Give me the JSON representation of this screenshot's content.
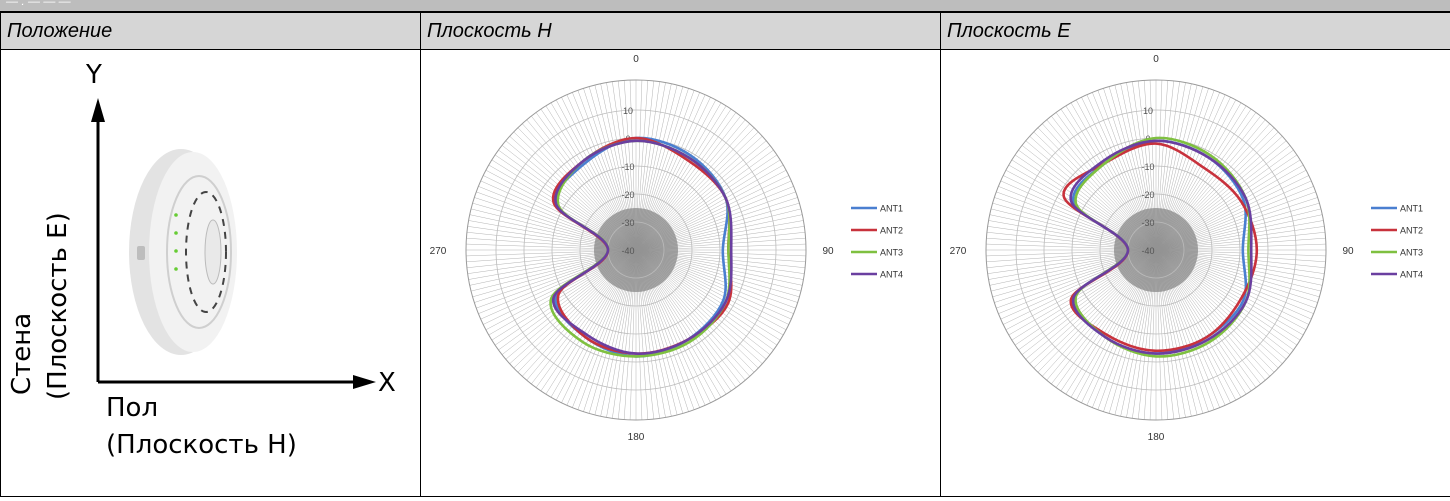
{
  "topbar": {
    "text": "— . —  —  —"
  },
  "headers": {
    "position": "Положение",
    "h_plane": "Плоскость H",
    "e_plane": "Плоскость E"
  },
  "position_panel": {
    "y_label": "Y",
    "x_label": "X",
    "wall_label": "Стена",
    "wall_sub": "(Плоскость E)",
    "floor_label": "Пол",
    "floor_sub": "(Плоскость H)"
  },
  "colors": {
    "ANT1": "#4a7fd0",
    "ANT2": "#c8323c",
    "ANT3": "#7fc040",
    "ANT4": "#6a3fa0",
    "grid": "#cfcfcf",
    "spokes": "#9a9a9a",
    "center": "#888888"
  },
  "chart_data": [
    {
      "type": "line",
      "subtype": "polar",
      "title": "Плоскость H",
      "angle_labels": [
        "0",
        "90",
        "180",
        "270"
      ],
      "radial_ticks": [
        10,
        0,
        -10,
        -20,
        -30,
        -40
      ],
      "rlim": [
        -40,
        10
      ],
      "legend_position": "right",
      "angles": [
        0,
        30,
        60,
        90,
        120,
        150,
        180,
        210,
        240,
        270,
        300,
        330
      ],
      "series": [
        {
          "name": "ANT1",
          "values": [
            0,
            -1,
            -3,
            -9,
            -4,
            -3,
            -2,
            -4,
            -7,
            -30,
            -7,
            -4
          ]
        },
        {
          "name": "ANT2",
          "values": [
            0,
            -3,
            -3,
            -7,
            -2,
            -3,
            -3,
            -4,
            -8,
            -30,
            -6,
            -3
          ]
        },
        {
          "name": "ANT3",
          "values": [
            -1,
            -2,
            -3,
            -7,
            -3,
            -2,
            -2,
            -2,
            -5,
            -30,
            -8,
            -3
          ]
        },
        {
          "name": "ANT4",
          "values": [
            -1,
            -2,
            -3,
            -6,
            -3,
            -3,
            -3,
            -5,
            -6,
            -30,
            -7,
            -3
          ]
        }
      ]
    },
    {
      "type": "line",
      "subtype": "polar",
      "title": "Плоскость E",
      "angle_labels": [
        "0",
        "90",
        "180",
        "270"
      ],
      "radial_ticks": [
        10,
        0,
        -10,
        -20,
        -30,
        -40
      ],
      "rlim": [
        -40,
        10
      ],
      "legend_position": "right",
      "angles": [
        0,
        30,
        60,
        90,
        120,
        150,
        180,
        210,
        240,
        270,
        300,
        330
      ],
      "series": [
        {
          "name": "ANT1",
          "values": [
            -1,
            -2,
            -4,
            -9,
            -4,
            -4,
            -3,
            -4,
            -6,
            -30,
            -6,
            -4
          ]
        },
        {
          "name": "ANT2",
          "values": [
            -2,
            -6,
            -5,
            -4,
            -5,
            -4,
            -4,
            -5,
            -5,
            -30,
            -2,
            -4
          ]
        },
        {
          "name": "ANT3",
          "values": [
            0,
            -1,
            -3,
            -7,
            -3,
            -2,
            -2,
            -4,
            -7,
            -30,
            -7,
            -4
          ]
        },
        {
          "name": "ANT4",
          "values": [
            -1,
            -2,
            -3,
            -6,
            -3,
            -3,
            -3,
            -4,
            -6,
            -30,
            -5,
            -3
          ]
        }
      ]
    }
  ]
}
